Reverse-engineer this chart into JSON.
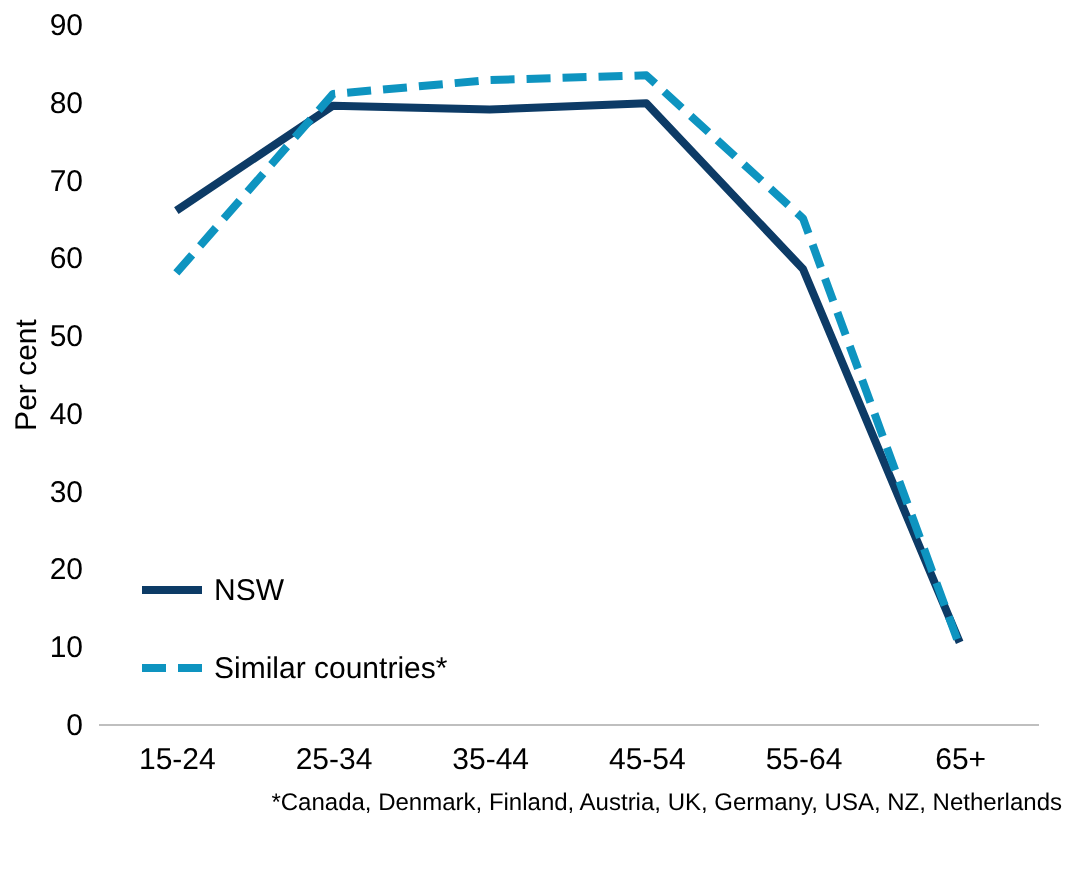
{
  "chart_data": {
    "type": "line",
    "categories": [
      "15-24",
      "25-34",
      "35-44",
      "45-54",
      "55-64",
      "65+"
    ],
    "series": [
      {
        "name": "NSW",
        "color": "#0d3b66",
        "line_style": "solid",
        "values": [
          66,
          79.5,
          79,
          79.8,
          58.5,
          10.5
        ]
      },
      {
        "name": "Similar countries*",
        "color": "#0e94c0",
        "line_style": "dashed",
        "values": [
          58,
          81,
          82.8,
          83.4,
          65,
          10
        ]
      }
    ],
    "ylabel": "Per cent",
    "ylim": [
      0,
      90
    ],
    "yticks": [
      0,
      10,
      20,
      30,
      40,
      50,
      60,
      70,
      80,
      90
    ],
    "grid": false,
    "legend": "bottom left",
    "marker": "none",
    "annotations": [
      "*Canada, Denmark, Finland, Austria, UK, Germany, USA, NZ, Netherlands"
    ]
  }
}
